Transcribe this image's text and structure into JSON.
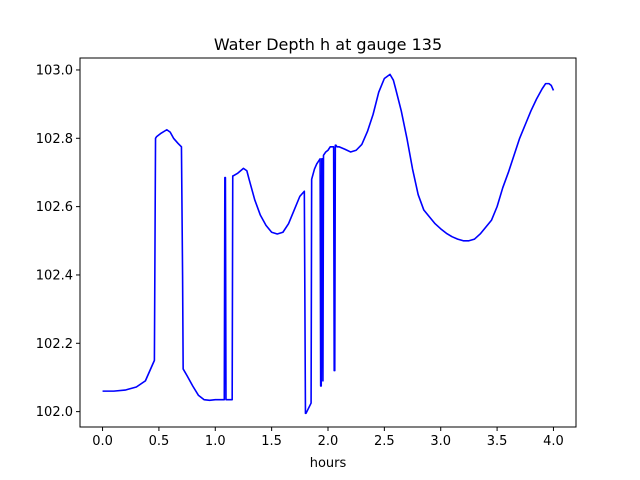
{
  "chart_data": {
    "type": "line",
    "title": "Water Depth h at gauge 135",
    "xlabel": "hours",
    "ylabel": "",
    "xlim": [
      -0.2,
      4.2
    ],
    "ylim": [
      101.955,
      103.035
    ],
    "x_ticks": [
      0.0,
      0.5,
      1.0,
      1.5,
      2.0,
      2.5,
      3.0,
      3.5,
      4.0
    ],
    "x_tick_labels": [
      "0.0",
      "0.5",
      "1.0",
      "1.5",
      "2.0",
      "2.5",
      "3.0",
      "3.5",
      "4.0"
    ],
    "y_ticks": [
      102.0,
      102.2,
      102.4,
      102.6,
      102.8,
      103.0
    ],
    "y_tick_labels": [
      "102.0",
      "102.2",
      "102.4",
      "102.6",
      "102.8",
      "103.0"
    ],
    "grid": false,
    "legend": "none",
    "series": [
      {
        "color": "#0000ff",
        "x": [
          0.0,
          0.1,
          0.2,
          0.3,
          0.38,
          0.42,
          0.46,
          0.47,
          0.48,
          0.52,
          0.57,
          0.6,
          0.63,
          0.67,
          0.7,
          0.71,
          0.715,
          0.75,
          0.8,
          0.85,
          0.9,
          0.95,
          1.0,
          1.05,
          1.08,
          1.085,
          1.09,
          1.095,
          1.1,
          1.15,
          1.155,
          1.16,
          1.2,
          1.25,
          1.28,
          1.3,
          1.35,
          1.4,
          1.45,
          1.5,
          1.55,
          1.6,
          1.65,
          1.7,
          1.75,
          1.79,
          1.8,
          1.805,
          1.85,
          1.855,
          1.88,
          1.9,
          1.93,
          1.935,
          1.94,
          1.945,
          1.95,
          1.955,
          1.96,
          1.98,
          2.0,
          2.02,
          2.05,
          2.055,
          2.06,
          2.065,
          2.07,
          2.08,
          2.1,
          2.15,
          2.2,
          2.25,
          2.3,
          2.35,
          2.4,
          2.45,
          2.5,
          2.55,
          2.58,
          2.6,
          2.65,
          2.7,
          2.75,
          2.8,
          2.85,
          2.9,
          2.95,
          3.0,
          3.05,
          3.1,
          3.15,
          3.2,
          3.25,
          3.3,
          3.35,
          3.4,
          3.45,
          3.5,
          3.55,
          3.6,
          3.65,
          3.7,
          3.75,
          3.8,
          3.85,
          3.9,
          3.93,
          3.96,
          3.98,
          4.0
        ],
        "y": [
          102.06,
          102.06,
          102.063,
          102.072,
          102.09,
          102.12,
          102.15,
          102.8,
          102.805,
          102.815,
          102.825,
          102.818,
          102.8,
          102.785,
          102.775,
          102.4,
          102.125,
          102.105,
          102.075,
          102.048,
          102.035,
          102.033,
          102.035,
          102.035,
          102.035,
          102.685,
          102.685,
          102.035,
          102.035,
          102.035,
          102.69,
          102.69,
          102.698,
          102.712,
          102.705,
          102.68,
          102.62,
          102.575,
          102.545,
          102.525,
          102.52,
          102.525,
          102.55,
          102.59,
          102.63,
          102.645,
          101.995,
          101.995,
          102.025,
          102.68,
          102.71,
          102.725,
          102.74,
          102.075,
          102.075,
          102.74,
          102.74,
          102.09,
          102.75,
          102.76,
          102.765,
          102.775,
          102.775,
          102.12,
          102.12,
          102.78,
          102.78,
          102.775,
          102.775,
          102.768,
          102.76,
          102.765,
          102.782,
          102.82,
          102.87,
          102.935,
          102.975,
          102.987,
          102.97,
          102.945,
          102.88,
          102.8,
          102.71,
          102.635,
          102.59,
          102.57,
          102.55,
          102.535,
          102.522,
          102.512,
          102.505,
          102.5,
          102.5,
          102.505,
          102.52,
          102.54,
          102.56,
          102.6,
          102.655,
          102.7,
          102.75,
          102.8,
          102.84,
          102.88,
          102.915,
          102.945,
          102.96,
          102.96,
          102.955,
          102.94
        ]
      }
    ]
  }
}
